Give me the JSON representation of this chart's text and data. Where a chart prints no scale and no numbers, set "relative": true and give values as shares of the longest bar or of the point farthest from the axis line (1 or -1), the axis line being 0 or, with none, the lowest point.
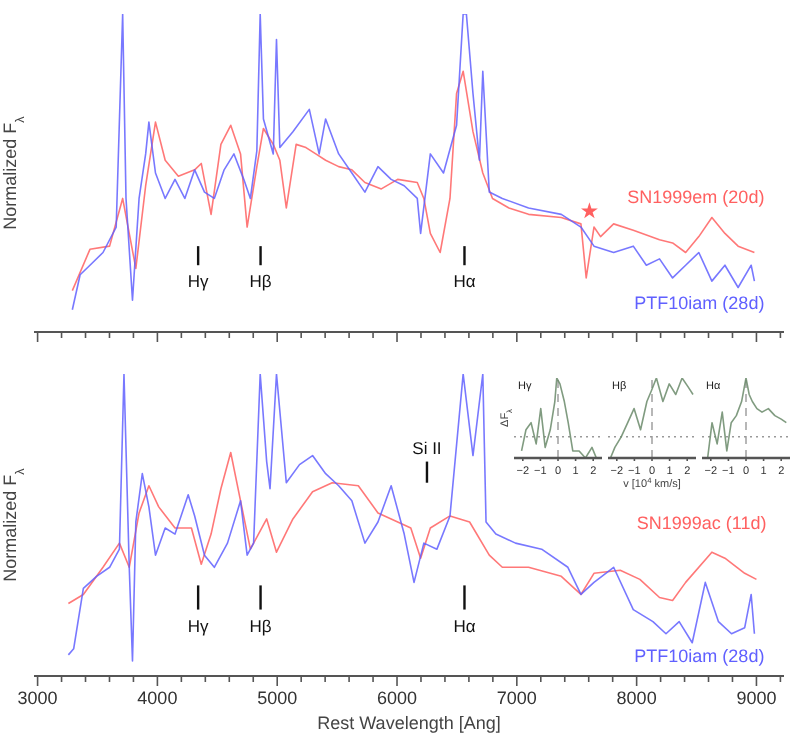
{
  "chart_data": [
    {
      "type": "line",
      "ylabel": "Normalized F$_{λ}$",
      "relative": true,
      "tick_labels": false,
      "xlim": [
        2970,
        9230
      ],
      "xticks": [
        3000,
        {
          "value": 3200,
          "label": null
        },
        {
          "value": 3400,
          "label": null
        },
        {
          "value": 3600,
          "label": null
        },
        {
          "value": 3800,
          "label": null
        },
        4000,
        {
          "value": 4200,
          "label": null
        },
        {
          "value": 4400,
          "label": null
        },
        {
          "value": 4600,
          "label": null
        },
        {
          "value": 4800,
          "label": null
        },
        5000,
        {
          "value": 5200,
          "label": null
        },
        {
          "value": 5400,
          "label": null
        },
        {
          "value": 5600,
          "label": null
        },
        {
          "value": 5800,
          "label": null
        },
        6000,
        {
          "value": 6200,
          "label": null
        },
        {
          "value": 6400,
          "label": null
        },
        {
          "value": 6600,
          "label": null
        },
        {
          "value": 6800,
          "label": null
        },
        7000,
        {
          "value": 7200,
          "label": null
        },
        {
          "value": 7400,
          "label": null
        },
        {
          "value": 7600,
          "label": null
        },
        {
          "value": 7800,
          "label": null
        },
        8000,
        {
          "value": 8200,
          "label": null
        },
        {
          "value": 8400,
          "label": null
        },
        {
          "value": 8600,
          "label": null
        },
        {
          "value": 8800,
          "label": null
        },
        9000,
        {
          "value": 9200,
          "label": null
        }
      ],
      "series": [
        {
          "name": "SN1999em (20d)",
          "color": "#ff6060",
          "x": [
            3290,
            3437,
            3601,
            3710,
            3820,
            3902,
            3984,
            4065,
            4175,
            4311,
            4366,
            4448,
            4530,
            4612,
            4694,
            4749,
            4830,
            4885,
            4967,
            5022,
            5076,
            5158,
            5240,
            5322,
            5404,
            5513,
            5623,
            5732,
            5869,
            6005,
            6169,
            6224,
            6278,
            6360,
            6442,
            6497,
            6552,
            6634,
            6716,
            6797,
            6934,
            7098,
            7371,
            7535,
            7579,
            7644,
            7699,
            7808,
            7972,
            8191,
            8300,
            8409,
            8519,
            8628,
            8737,
            8847,
            8983
          ],
          "values": [
            0.13,
            0.26,
            0.27,
            0.42,
            0.2,
            0.46,
            0.66,
            0.54,
            0.49,
            0.51,
            0.53,
            0.37,
            0.59,
            0.65,
            0.56,
            0.33,
            0.52,
            0.64,
            0.59,
            0.54,
            0.39,
            0.59,
            0.58,
            0.56,
            0.54,
            0.52,
            0.51,
            0.47,
            0.45,
            0.48,
            0.47,
            0.42,
            0.31,
            0.25,
            0.42,
            0.75,
            0.82,
            0.63,
            0.5,
            0.42,
            0.39,
            0.37,
            0.36,
            0.34,
            0.17,
            0.33,
            0.3,
            0.34,
            0.32,
            0.29,
            0.28,
            0.25,
            0.3,
            0.36,
            0.31,
            0.27,
            0.25
          ]
        },
        {
          "name": "PTF10iam (28d)",
          "color": "#6060ff",
          "x": [
            3290,
            3355,
            3437,
            3546,
            3656,
            3710,
            3738,
            3792,
            3847,
            3902,
            3929,
            3984,
            4065,
            4147,
            4229,
            4311,
            4393,
            4475,
            4557,
            4639,
            4721,
            4776,
            4830,
            4858,
            4885,
            4967,
            4994,
            5022,
            5131,
            5268,
            5350,
            5404,
            5513,
            5623,
            5732,
            5841,
            5951,
            6060,
            6169,
            6197,
            6278,
            6388,
            6497,
            6552,
            6579,
            6634,
            6688,
            6716,
            6770,
            6879,
            7098,
            7371,
            7535,
            7644,
            7808,
            7972,
            8081,
            8191,
            8300,
            8409,
            8519,
            8628,
            8737,
            8847,
            8956,
            8983
          ],
          "values": [
            0.07,
            0.18,
            0.21,
            0.25,
            0.33,
            1.0,
            0.42,
            0.1,
            0.42,
            0.56,
            0.66,
            0.5,
            0.42,
            0.48,
            0.42,
            0.51,
            0.44,
            0.42,
            0.51,
            0.56,
            0.48,
            0.42,
            0.57,
            1.0,
            0.67,
            0.56,
            0.92,
            0.58,
            0.63,
            0.7,
            0.56,
            0.67,
            0.56,
            0.5,
            0.44,
            0.52,
            0.48,
            0.46,
            0.42,
            0.31,
            0.56,
            0.5,
            0.65,
            1.0,
            1.0,
            0.75,
            0.54,
            0.82,
            0.44,
            0.42,
            0.39,
            0.37,
            0.33,
            0.27,
            0.25,
            0.27,
            0.21,
            0.23,
            0.17,
            0.21,
            0.25,
            0.16,
            0.21,
            0.14,
            0.21,
            0.16
          ]
        },
        {
          "type": "scatter",
          "color": "#ff6060",
          "marker": "star",
          "x": [
            7606
          ],
          "values": [
            0.38
          ]
        }
      ],
      "ref_lines": [
        {
          "axis": "x",
          "value": 4340,
          "label": "Hγ",
          "color": "#111111"
        },
        {
          "axis": "x",
          "value": 4861,
          "label": "Hβ",
          "color": "#111111"
        },
        {
          "axis": "x",
          "value": 6563,
          "label": "Hα",
          "color": "#111111"
        }
      ]
    },
    {
      "type": "line",
      "xlabel": "Rest Wavelength [Ang]",
      "ylabel": "Normalized F$_{λ}$",
      "relative": true,
      "tick_labels": "x",
      "xlim": [
        2970,
        9230
      ],
      "xticks": [
        3000,
        {
          "value": 3200,
          "label": null
        },
        {
          "value": 3400,
          "label": null
        },
        {
          "value": 3600,
          "label": null
        },
        {
          "value": 3800,
          "label": null
        },
        4000,
        {
          "value": 4200,
          "label": null
        },
        {
          "value": 4400,
          "label": null
        },
        {
          "value": 4600,
          "label": null
        },
        {
          "value": 4800,
          "label": null
        },
        5000,
        {
          "value": 5200,
          "label": null
        },
        {
          "value": 5400,
          "label": null
        },
        {
          "value": 5600,
          "label": null
        },
        {
          "value": 5800,
          "label": null
        },
        6000,
        {
          "value": 6200,
          "label": null
        },
        {
          "value": 6400,
          "label": null
        },
        {
          "value": 6600,
          "label": null
        },
        {
          "value": 6800,
          "label": null
        },
        7000,
        {
          "value": 7200,
          "label": null
        },
        {
          "value": 7400,
          "label": null
        },
        {
          "value": 7600,
          "label": null
        },
        {
          "value": 7800,
          "label": null
        },
        8000,
        {
          "value": 8200,
          "label": null
        },
        {
          "value": 8400,
          "label": null
        },
        {
          "value": 8600,
          "label": null
        },
        {
          "value": 8800,
          "label": null
        },
        9000,
        {
          "value": 9200,
          "label": null
        }
      ],
      "series": [
        {
          "name": "SN1999ac (11d)",
          "color": "#ff6060",
          "x": [
            3257,
            3382,
            3546,
            3683,
            3765,
            3847,
            3929,
            4011,
            4147,
            4284,
            4366,
            4448,
            4530,
            4612,
            4694,
            4776,
            4830,
            4912,
            4994,
            5131,
            5295,
            5459,
            5677,
            5841,
            5951,
            6115,
            6197,
            6278,
            6442,
            6606,
            6770,
            6879,
            7098,
            7371,
            7480,
            7535,
            7644,
            7863,
            8027,
            8191,
            8300,
            8409,
            8628,
            8737,
            8902,
            9000
          ],
          "values": [
            0.24,
            0.27,
            0.36,
            0.44,
            0.36,
            0.54,
            0.63,
            0.56,
            0.49,
            0.49,
            0.37,
            0.47,
            0.62,
            0.74,
            0.58,
            0.42,
            0.46,
            0.52,
            0.41,
            0.52,
            0.61,
            0.64,
            0.63,
            0.54,
            0.52,
            0.49,
            0.39,
            0.49,
            0.53,
            0.51,
            0.4,
            0.36,
            0.36,
            0.33,
            0.29,
            0.27,
            0.34,
            0.35,
            0.32,
            0.26,
            0.25,
            0.31,
            0.41,
            0.39,
            0.34,
            0.32
          ]
        },
        {
          "name": "PTF10iam (28d)",
          "color": "#6060ff",
          "x": [
            3257,
            3301,
            3382,
            3492,
            3601,
            3683,
            3721,
            3765,
            3792,
            3820,
            3874,
            3929,
            3984,
            4065,
            4147,
            4257,
            4311,
            4393,
            4475,
            4585,
            4694,
            4749,
            4803,
            4858,
            4912,
            4940,
            4994,
            5076,
            5186,
            5295,
            5404,
            5513,
            5623,
            5732,
            5841,
            5951,
            6060,
            6142,
            6224,
            6333,
            6442,
            6552,
            6634,
            6716,
            6743,
            6825,
            6989,
            7207,
            7426,
            7535,
            7644,
            7808,
            7972,
            8136,
            8245,
            8355,
            8464,
            8573,
            8683,
            8792,
            8902,
            8956,
            8983
          ],
          "values": [
            0.07,
            0.09,
            0.29,
            0.33,
            0.36,
            0.42,
            1.0,
            0.36,
            0.05,
            0.51,
            0.67,
            0.56,
            0.4,
            0.49,
            0.47,
            0.6,
            0.53,
            0.4,
            0.36,
            0.44,
            0.58,
            0.4,
            0.44,
            1.0,
            0.71,
            0.62,
            1.0,
            0.64,
            0.7,
            0.73,
            0.67,
            0.63,
            0.58,
            0.44,
            0.51,
            0.63,
            0.47,
            0.31,
            0.44,
            0.42,
            0.53,
            1.0,
            0.73,
            1.0,
            0.51,
            0.47,
            0.44,
            0.42,
            0.36,
            0.27,
            0.31,
            0.36,
            0.22,
            0.18,
            0.14,
            0.18,
            0.11,
            0.31,
            0.18,
            0.14,
            0.16,
            0.27,
            0.14
          ]
        }
      ],
      "ref_lines": [
        {
          "axis": "x",
          "value": 4340,
          "label": "Hγ",
          "color": "#111111"
        },
        {
          "axis": "x",
          "value": 4861,
          "label": "Hβ",
          "color": "#111111"
        },
        {
          "axis": "x",
          "value": 6563,
          "label": "Hα",
          "color": "#111111"
        },
        {
          "axis": "x",
          "value": 6250,
          "label": "Si II",
          "color": "#111111"
        }
      ]
    },
    {
      "type": "line",
      "title": "Hγ",
      "ylabel": "ΔF$_{λ}$",
      "relative": true,
      "tick_labels": "x",
      "xlim": [
        -2.5,
        2.5
      ],
      "xticks": [
        {
          "value": -2,
          "label": "−2"
        },
        {
          "value": -1,
          "label": "−1"
        },
        0,
        1,
        2
      ],
      "ref_lines": [
        {
          "axis": "x",
          "value": 0,
          "line_style": "dashed",
          "color": "#999999"
        },
        {
          "axis": "y",
          "value": 0,
          "line_style": "dotted",
          "color": "#999999"
        }
      ],
      "series": [
        {
          "color": "#6a8a6a",
          "x": [
            -2.07,
            -1.82,
            -1.53,
            -1.24,
            -0.98,
            -0.73,
            -0.44,
            -0.18,
            -0.07,
            0.11,
            0.36,
            0.58,
            0.84,
            1.2,
            1.56,
            1.93,
            2.18
          ],
          "values": [
            -0.24,
            0.12,
            0.24,
            -0.12,
            0.48,
            -0.18,
            0.12,
            0.6,
            1,
            0.9,
            0.6,
            0.24,
            -0.24,
            -0.24,
            -0.36,
            -0.18,
            -0.36
          ]
        }
      ]
    },
    {
      "type": "line",
      "title": "Hβ",
      "xlabel": "v [10$^{4}$ km/s]",
      "relative": true,
      "tick_labels": "x",
      "xlim": [
        -2.5,
        2.5
      ],
      "xticks": [
        {
          "value": -2,
          "label": "−2"
        },
        {
          "value": -1,
          "label": "−1"
        },
        0,
        1,
        2
      ],
      "ref_lines": [
        {
          "axis": "x",
          "value": 0,
          "line_style": "dashed",
          "color": "#999999"
        },
        {
          "axis": "y",
          "value": 0,
          "line_style": "dotted",
          "color": "#999999"
        }
      ],
      "series": [
        {
          "color": "#6a8a6a",
          "x": [
            -2.36,
            -2.11,
            -1.75,
            -1.38,
            -1.02,
            -0.65,
            -0.29,
            -0.04,
            0.25,
            0.62,
            0.98,
            1.35,
            1.71,
            2.07,
            2.33
          ],
          "values": [
            -0.36,
            -0.18,
            0,
            0.24,
            0.48,
            0.12,
            0.6,
            0.78,
            1,
            0.6,
            0.9,
            0.72,
            1,
            0.84,
            0.72
          ]
        }
      ]
    },
    {
      "type": "line",
      "title": "Hα",
      "relative": true,
      "tick_labels": "x",
      "xlim": [
        -2.5,
        2.5
      ],
      "xticks": [
        {
          "value": -2,
          "label": "−2"
        },
        {
          "value": -1,
          "label": "−1"
        },
        0,
        1,
        2
      ],
      "ref_lines": [
        {
          "axis": "x",
          "value": 0,
          "line_style": "dashed",
          "color": "#999999"
        },
        {
          "axis": "y",
          "value": 0,
          "line_style": "dotted",
          "color": "#999999"
        }
      ],
      "series": [
        {
          "color": "#6a8a6a",
          "x": [
            -2.18,
            -1.93,
            -1.64,
            -1.35,
            -1.09,
            -0.84,
            -0.55,
            -0.25,
            0,
            0.18,
            0.36,
            0.62,
            0.91,
            1.27,
            1.64,
            2,
            2.29
          ],
          "values": [
            -0.36,
            0.24,
            -0.12,
            0.42,
            -0.24,
            0.24,
            0.36,
            0.6,
            1,
            0.72,
            0.6,
            0.48,
            0.42,
            0.48,
            0.36,
            0.3,
            0.24
          ]
        }
      ]
    }
  ]
}
